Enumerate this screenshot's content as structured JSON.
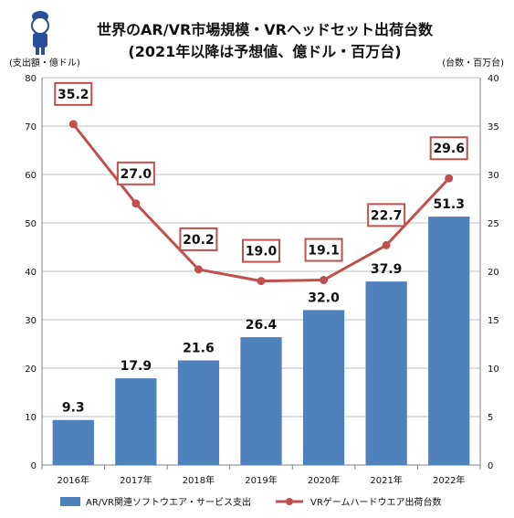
{
  "chart_data": {
    "type": "bar+line",
    "title": [
      "世界のAR/VR市場規模・VRヘッドセット出荷台数",
      "(2021年以降は予想値、億ドル・百万台)"
    ],
    "y_left_unit": "(支出額・億ドル)",
    "y_right_unit": "(台数・百万台)",
    "categories": [
      "2016年",
      "2017年",
      "2018年",
      "2019年",
      "2020年",
      "2021年",
      "2022年"
    ],
    "ylim_left": [
      0,
      80
    ],
    "ylim_right": [
      0,
      40
    ],
    "yticks_left": [
      "0",
      "10",
      "20",
      "30",
      "40",
      "50",
      "60",
      "70",
      "80"
    ],
    "yticks_right": [
      "0",
      "5",
      "10",
      "15",
      "20",
      "25",
      "30",
      "35",
      "40"
    ],
    "grid": true,
    "legend_position": "bottom",
    "series": [
      {
        "name": "AR/VR関連ソフトウエア・サービス支出",
        "type": "bar",
        "axis": "left",
        "values": [
          9.3,
          17.9,
          21.6,
          26.4,
          32.0,
          37.9,
          51.3
        ],
        "labels": [
          "9.3",
          "17.9",
          "21.6",
          "26.4",
          "32.0",
          "37.9",
          "51.3"
        ]
      },
      {
        "name": "VRゲームハードウエア出荷台数",
        "type": "line",
        "axis": "right",
        "values": [
          35.2,
          27.0,
          20.2,
          19.0,
          19.1,
          22.7,
          29.6
        ],
        "labels": [
          "35.2",
          "27.0",
          "20.2",
          "19.0",
          "19.1",
          "22.7",
          "29.6"
        ]
      }
    ],
    "colors": {
      "bar": "#4f81bd",
      "line": "#c0504d",
      "grid": "#bfbfbf"
    }
  }
}
